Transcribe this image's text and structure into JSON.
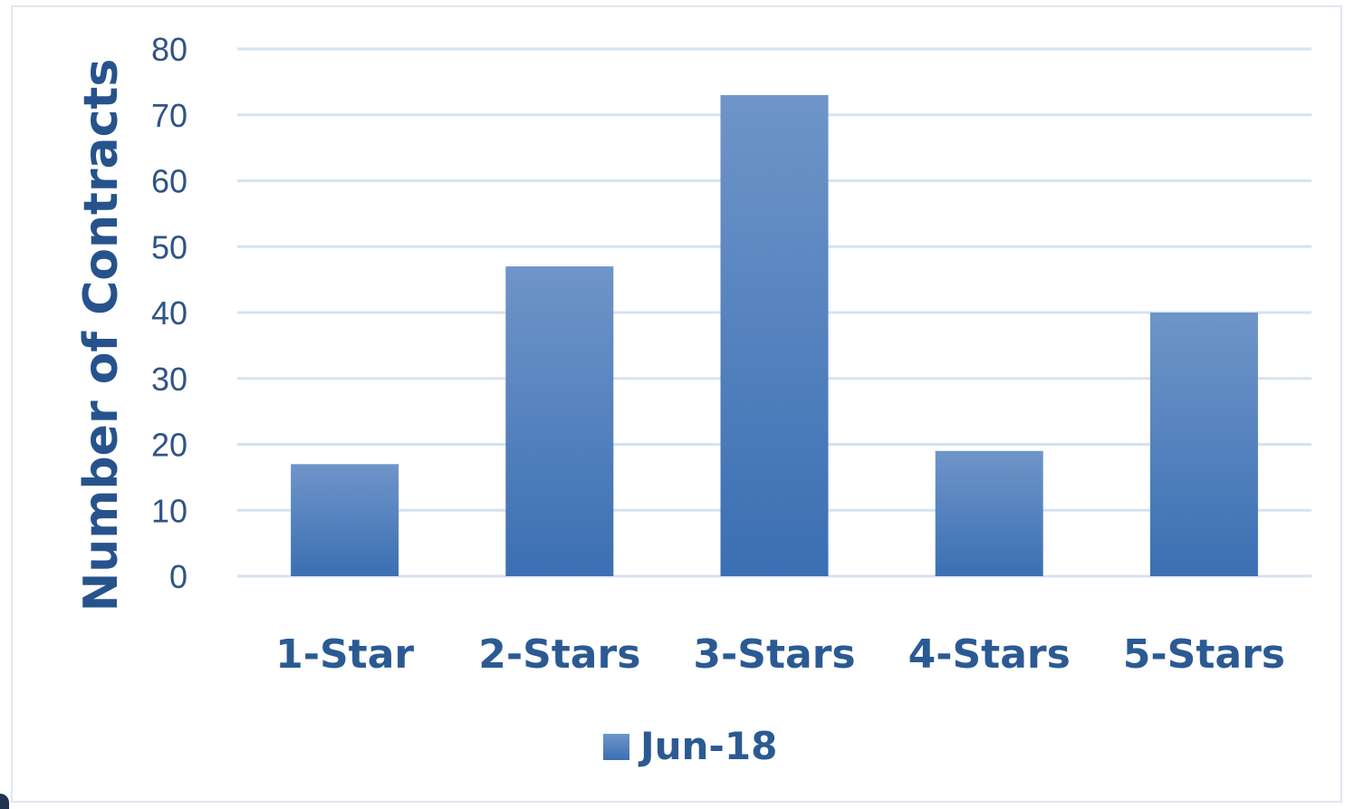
{
  "chart_data": {
    "type": "bar",
    "categories": [
      "1-Star",
      "2-Stars",
      "3-Stars",
      "4-Stars",
      "5-Stars"
    ],
    "series": [
      {
        "name": "Jun-18",
        "values": [
          17,
          47,
          73,
          19,
          40
        ]
      }
    ],
    "xlabel": "",
    "ylabel": "Number of Contracts",
    "ylim": [
      0,
      80
    ],
    "yticks": [
      0,
      10,
      20,
      30,
      40,
      50,
      60,
      70,
      80
    ],
    "grid": true,
    "legend_position": "bottom",
    "colors": {
      "bar_top": "#6f95c9",
      "bar_bottom": "#3b6fb3",
      "gridline": "#d6e3f0",
      "text": "#2b5a93"
    }
  }
}
